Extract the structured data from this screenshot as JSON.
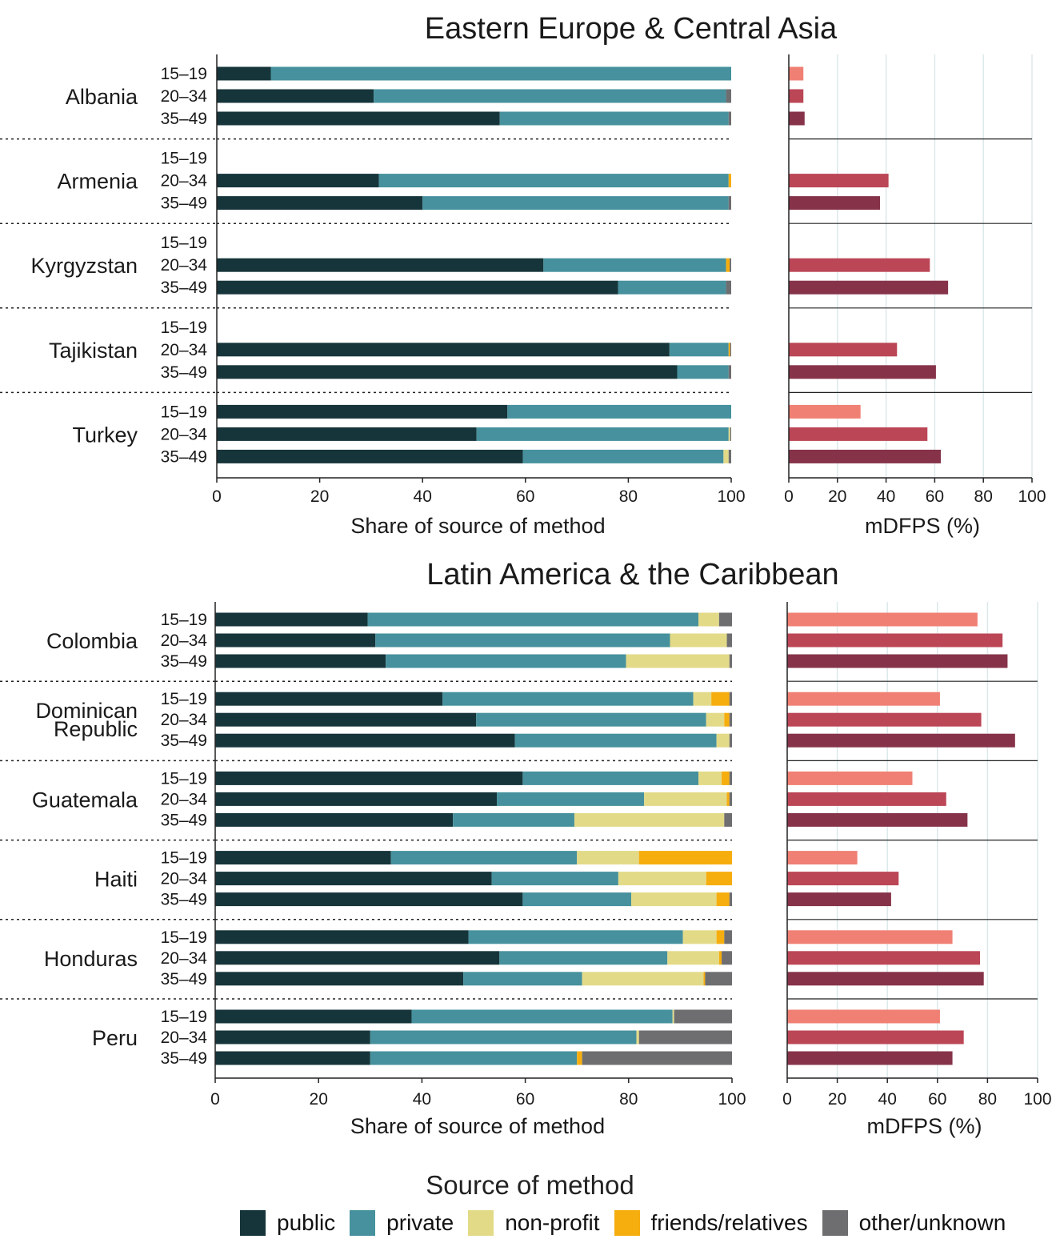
{
  "legend": {
    "title": "Source of method",
    "items": [
      {
        "key": "public",
        "label": "public",
        "color": "#16353a"
      },
      {
        "key": "private",
        "label": "private",
        "color": "#46919d"
      },
      {
        "key": "nonprofit",
        "label": "non-profit",
        "color": "#e3da88"
      },
      {
        "key": "friends",
        "label": "friends/relatives",
        "color": "#f6ad0e"
      },
      {
        "key": "other",
        "label": "other/unknown",
        "color": "#6e6e70"
      }
    ]
  },
  "mdfps_colors": {
    "15–19": "#f08074",
    "20–34": "#bb4656",
    "35–49": "#86334a"
  },
  "chart_data": [
    {
      "type": "bar",
      "orientation": "horizontal",
      "stacked": true,
      "title": "Eastern Europe & Central Asia",
      "xlabel": "Share of source of method",
      "xlim": [
        0,
        100
      ],
      "xticks": [
        "0",
        "20",
        "40",
        "60",
        "80",
        "100"
      ],
      "age_groups": [
        "15–19",
        "20–34",
        "35–49"
      ],
      "countries": [
        {
          "name": "Albania",
          "rows": [
            {
              "age": "15–19",
              "public": 10.5,
              "private": 89.5,
              "nonprofit": 0,
              "friends": 0,
              "other": 0
            },
            {
              "age": "20–34",
              "public": 30.5,
              "private": 68.5,
              "nonprofit": 0,
              "friends": 0,
              "other": 1
            },
            {
              "age": "35–49",
              "public": 55,
              "private": 44.5,
              "nonprofit": 0,
              "friends": 0,
              "other": 0.5
            }
          ]
        },
        {
          "name": "Armenia",
          "rows": [
            null,
            {
              "age": "20–34",
              "public": 31.5,
              "private": 68,
              "nonprofit": 0,
              "friends": 0.5,
              "other": 0
            },
            {
              "age": "35–49",
              "public": 40,
              "private": 59.5,
              "nonprofit": 0,
              "friends": 0,
              "other": 0.5
            }
          ]
        },
        {
          "name": "Kyrgyzstan",
          "rows": [
            null,
            {
              "age": "20–34",
              "public": 63.5,
              "private": 35.5,
              "nonprofit": 0,
              "friends": 0.7,
              "other": 0.3
            },
            {
              "age": "35–49",
              "public": 78,
              "private": 21,
              "nonprofit": 0,
              "friends": 0,
              "other": 1
            }
          ]
        },
        {
          "name": "Tajikistan",
          "rows": [
            null,
            {
              "age": "20–34",
              "public": 88,
              "private": 11.5,
              "nonprofit": 0,
              "friends": 0.3,
              "other": 0.2
            },
            {
              "age": "35–49",
              "public": 89.5,
              "private": 10,
              "nonprofit": 0,
              "friends": 0,
              "other": 0.5
            }
          ]
        },
        {
          "name": "Turkey",
          "rows": [
            {
              "age": "15–19",
              "public": 56.5,
              "private": 43.5,
              "nonprofit": 0,
              "friends": 0,
              "other": 0
            },
            {
              "age": "20–34",
              "public": 50.5,
              "private": 49,
              "nonprofit": 0.3,
              "friends": 0,
              "other": 0.2
            },
            {
              "age": "35–49",
              "public": 59.5,
              "private": 39,
              "nonprofit": 1,
              "friends": 0,
              "other": 0.5
            }
          ]
        }
      ],
      "mdfps": {
        "xlabel": "mDFPS (%)",
        "xlim": [
          0,
          100
        ],
        "xticks": [
          "0",
          "20",
          "40",
          "60",
          "80",
          "100"
        ],
        "values": [
          [
            6,
            6,
            6.5
          ],
          [
            null,
            41,
            37.5
          ],
          [
            null,
            58,
            65.5
          ],
          [
            null,
            44.5,
            60.5
          ],
          [
            29.5,
            57,
            62.5
          ]
        ]
      }
    },
    {
      "type": "bar",
      "orientation": "horizontal",
      "stacked": true,
      "title": "Latin America & the Caribbean",
      "xlabel": "Share of source of method",
      "xlim": [
        0,
        100
      ],
      "xticks": [
        "0",
        "20",
        "40",
        "60",
        "80",
        "100"
      ],
      "age_groups": [
        "15–19",
        "20–34",
        "35–49"
      ],
      "countries": [
        {
          "name": "Colombia",
          "rows": [
            {
              "age": "15–19",
              "public": 29.5,
              "private": 64,
              "nonprofit": 4,
              "friends": 0,
              "other": 2.5
            },
            {
              "age": "20–34",
              "public": 31,
              "private": 57,
              "nonprofit": 11,
              "friends": 0,
              "other": 1
            },
            {
              "age": "35–49",
              "public": 33,
              "private": 46.5,
              "nonprofit": 20,
              "friends": 0,
              "other": 0.5
            }
          ]
        },
        {
          "name": "Dominican Republic",
          "lines": [
            "Dominican",
            "Republic"
          ],
          "rows": [
            {
              "age": "15–19",
              "public": 44,
              "private": 48.5,
              "nonprofit": 3.5,
              "friends": 3.5,
              "other": 0.5
            },
            {
              "age": "20–34",
              "public": 50.5,
              "private": 44.5,
              "nonprofit": 3.5,
              "friends": 1,
              "other": 0.5
            },
            {
              "age": "35–49",
              "public": 58,
              "private": 39,
              "nonprofit": 2.5,
              "friends": 0,
              "other": 0.5
            }
          ]
        },
        {
          "name": "Guatemala",
          "rows": [
            {
              "age": "15–19",
              "public": 59.5,
              "private": 34,
              "nonprofit": 4.5,
              "friends": 1.5,
              "other": 0.5
            },
            {
              "age": "20–34",
              "public": 54.5,
              "private": 28.5,
              "nonprofit": 16,
              "friends": 0.5,
              "other": 0.5
            },
            {
              "age": "35–49",
              "public": 46,
              "private": 23.5,
              "nonprofit": 29,
              "friends": 0,
              "other": 1.5
            }
          ]
        },
        {
          "name": "Haiti",
          "rows": [
            {
              "age": "15–19",
              "public": 34,
              "private": 36,
              "nonprofit": 12,
              "friends": 18,
              "other": 0
            },
            {
              "age": "20–34",
              "public": 53.5,
              "private": 24.5,
              "nonprofit": 17,
              "friends": 5,
              "other": 0
            },
            {
              "age": "35–49",
              "public": 59.5,
              "private": 21,
              "nonprofit": 16.5,
              "friends": 2.5,
              "other": 0.5
            }
          ]
        },
        {
          "name": "Honduras",
          "rows": [
            {
              "age": "15–19",
              "public": 49,
              "private": 41.5,
              "nonprofit": 6.5,
              "friends": 1.5,
              "other": 1.5
            },
            {
              "age": "20–34",
              "public": 55,
              "private": 32.5,
              "nonprofit": 10,
              "friends": 0.5,
              "other": 2
            },
            {
              "age": "35–49",
              "public": 48,
              "private": 23,
              "nonprofit": 23.5,
              "friends": 0.3,
              "other": 5.2
            }
          ]
        },
        {
          "name": "Peru",
          "rows": [
            {
              "age": "15–19",
              "public": 38,
              "private": 50.5,
              "nonprofit": 0.3,
              "friends": 0,
              "other": 11.2
            },
            {
              "age": "20–34",
              "public": 30,
              "private": 51.5,
              "nonprofit": 0.5,
              "friends": 0,
              "other": 18
            },
            {
              "age": "35–49",
              "public": 30,
              "private": 40,
              "nonprofit": 0,
              "friends": 1,
              "other": 29
            }
          ]
        }
      ],
      "mdfps": {
        "xlabel": "mDFPS (%)",
        "xlim": [
          0,
          100
        ],
        "xticks": [
          "0",
          "20",
          "40",
          "60",
          "80",
          "100"
        ],
        "values": [
          [
            76,
            86,
            88
          ],
          [
            61,
            77.5,
            91
          ],
          [
            50,
            63.5,
            72
          ],
          [
            28,
            44.5,
            41.5
          ],
          [
            66,
            77,
            78.5
          ],
          [
            61,
            70.5,
            66
          ]
        ]
      }
    }
  ]
}
